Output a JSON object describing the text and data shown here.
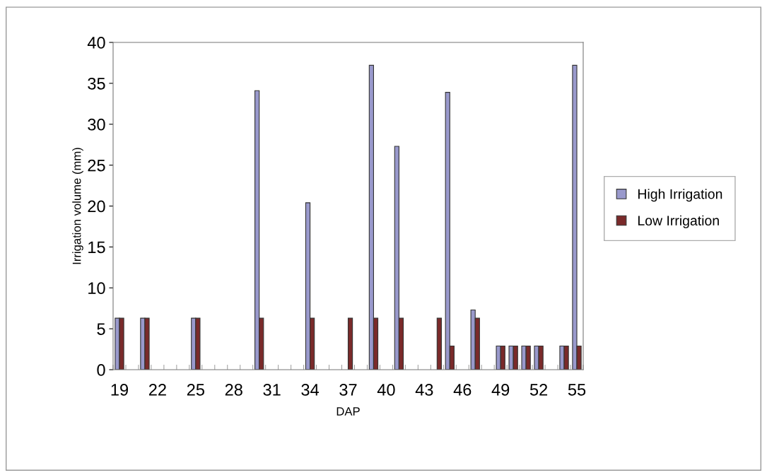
{
  "chart_data": {
    "type": "bar",
    "xlabel": "DAP",
    "ylabel": "Irrigation volume (mm)",
    "categories": [
      "19",
      null,
      null,
      "22",
      null,
      null,
      "25",
      null,
      null,
      "28",
      null,
      null,
      "31",
      null,
      null,
      "34",
      null,
      null,
      "37",
      null,
      null,
      "40",
      null,
      null,
      "43",
      null,
      null,
      "46",
      null,
      null,
      "49",
      null,
      null,
      "52",
      null,
      null,
      "55"
    ],
    "series": [
      {
        "name": "High Irrigation",
        "color": "#9999cc",
        "values": [
          6.3,
          null,
          6.3,
          null,
          null,
          null,
          6.3,
          null,
          null,
          null,
          null,
          34.1,
          null,
          null,
          null,
          20.4,
          null,
          null,
          null,
          null,
          37.2,
          null,
          27.3,
          null,
          null,
          null,
          33.9,
          null,
          7.3,
          null,
          2.9,
          2.9,
          2.9,
          2.9,
          null,
          2.9,
          37.2
        ]
      },
      {
        "name": "Low Irrigation",
        "color": "#7a2a2a",
        "values": [
          6.3,
          null,
          6.3,
          null,
          null,
          null,
          6.3,
          null,
          null,
          null,
          null,
          6.3,
          null,
          null,
          null,
          6.3,
          null,
          null,
          6.3,
          null,
          6.3,
          null,
          6.3,
          null,
          null,
          6.3,
          2.9,
          null,
          6.3,
          null,
          2.9,
          2.9,
          2.9,
          2.9,
          null,
          2.9,
          2.9
        ]
      }
    ],
    "ylim": [
      0,
      40
    ],
    "yticks": [
      0,
      5,
      10,
      15,
      20,
      25,
      30,
      35,
      40
    ],
    "grid": false,
    "legend": "right"
  }
}
